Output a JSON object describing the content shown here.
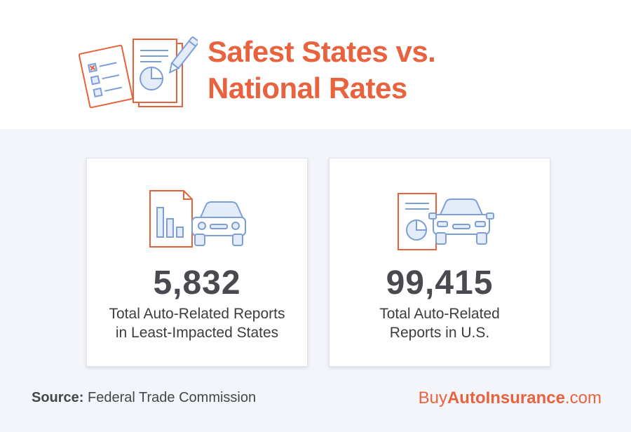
{
  "title": {
    "line1": "Safest States vs.",
    "line2": "National Rates"
  },
  "cards": [
    {
      "value": "5,832",
      "caption_line1": "Total Auto-Related Reports",
      "caption_line2": "in Least-Impacted States"
    },
    {
      "value": "99,415",
      "caption_line1": "Total Auto-Related",
      "caption_line2": "Reports in U.S."
    }
  ],
  "source": {
    "label": "Source:",
    "text": "Federal Trade Commission"
  },
  "brand": {
    "prefix": "Buy",
    "bold": "AutoInsurance",
    "suffix": ".com"
  },
  "colors": {
    "accent": "#e8623d",
    "icon_blue": "#7b9fd6",
    "icon_fill": "#e4ecfa",
    "text_dark": "#484a4f",
    "background": "#f3f5fa"
  },
  "icons": {
    "header": "documents-checklist-pen-icon",
    "card_left": "bar-chart-document-car-icon",
    "card_right": "pie-chart-document-car-icon"
  }
}
